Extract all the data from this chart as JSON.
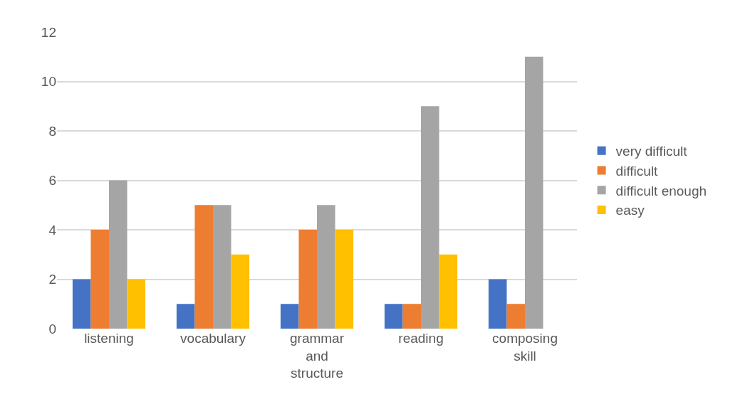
{
  "chart_data": {
    "type": "bar",
    "categories": [
      "listening",
      "vocabulary",
      "grammar and structure",
      "reading",
      "composing skill"
    ],
    "series": [
      {
        "name": "very difficult",
        "color": "#4472c4",
        "values": [
          2,
          1,
          1,
          1,
          2
        ]
      },
      {
        "name": "difficult",
        "color": "#ed7d31",
        "values": [
          4,
          5,
          4,
          1,
          1
        ]
      },
      {
        "name": "difficult enough",
        "color": "#a5a5a5",
        "values": [
          6,
          5,
          5,
          9,
          11
        ]
      },
      {
        "name": "easy",
        "color": "#ffc000",
        "values": [
          2,
          3,
          4,
          3,
          0
        ]
      }
    ],
    "ylim": [
      0,
      12
    ],
    "yticks": [
      0,
      2,
      4,
      6,
      8,
      10,
      12
    ],
    "grid": "y",
    "legend": "right"
  }
}
